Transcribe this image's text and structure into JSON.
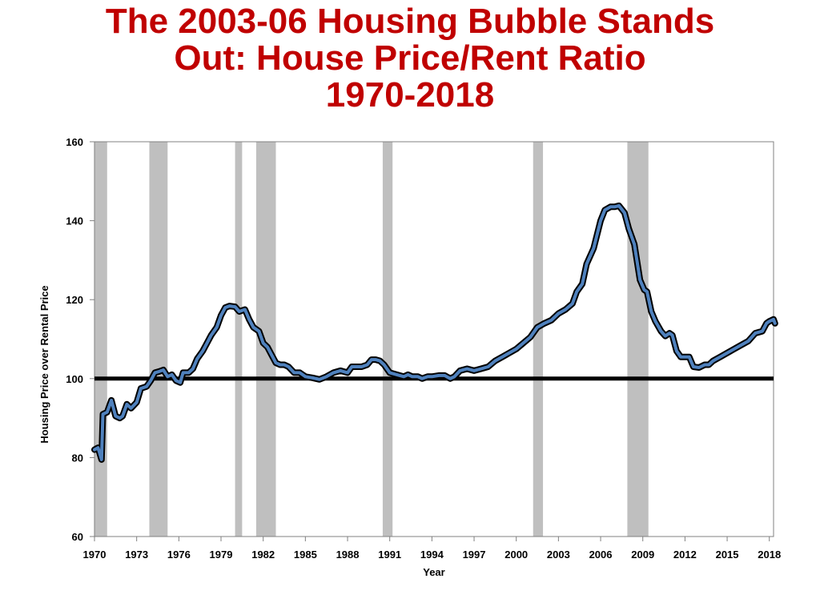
{
  "title_lines": [
    "The 2003-06 Housing Bubble Stands",
    "Out:  House Price/Rent Ratio",
    "1970-2018"
  ],
  "chart_data": {
    "type": "line",
    "title": "The 2003-06 Housing Bubble Stands Out:  House Price/Rent Ratio 1970-2018",
    "xlabel": "Year",
    "ylabel": "Housing Price over Rental Price",
    "xlim": [
      1970,
      2018.3
    ],
    "ylim": [
      60,
      160
    ],
    "xticks": [
      1970,
      1973,
      1976,
      1979,
      1982,
      1985,
      1988,
      1991,
      1994,
      1997,
      2000,
      2003,
      2006,
      2009,
      2012,
      2015,
      2018
    ],
    "yticks": [
      60,
      80,
      100,
      120,
      140,
      160
    ],
    "grid": false,
    "colors": {
      "line": "#4f81bd",
      "outline": "#000000",
      "reference": "#000000",
      "recession": "#bfbfbf",
      "title": "#c00000"
    },
    "reference_line": 100,
    "recessions": [
      [
        1970.0,
        1970.9
      ],
      [
        1973.9,
        1975.2
      ],
      [
        1980.0,
        1980.5
      ],
      [
        1981.5,
        1982.9
      ],
      [
        1990.5,
        1991.2
      ],
      [
        2001.2,
        2001.9
      ],
      [
        2007.9,
        2009.4
      ]
    ],
    "series": [
      {
        "values": [
          [
            1970.0,
            82
          ],
          [
            1970.25,
            82.5
          ],
          [
            1970.5,
            79.5
          ],
          [
            1970.6,
            91
          ],
          [
            1970.9,
            91.5
          ],
          [
            1971.2,
            94.5
          ],
          [
            1971.5,
            90.5
          ],
          [
            1971.8,
            90
          ],
          [
            1972.0,
            90.5
          ],
          [
            1972.3,
            93.5
          ],
          [
            1972.6,
            92.5
          ],
          [
            1973.0,
            94
          ],
          [
            1973.3,
            97.5
          ],
          [
            1973.7,
            98
          ],
          [
            1974.0,
            99.5
          ],
          [
            1974.3,
            101.5
          ],
          [
            1974.6,
            101.8
          ],
          [
            1974.9,
            102.2
          ],
          [
            1975.2,
            100.5
          ],
          [
            1975.5,
            101
          ],
          [
            1975.8,
            99.5
          ],
          [
            1976.1,
            99
          ],
          [
            1976.3,
            101.5
          ],
          [
            1976.7,
            101.5
          ],
          [
            1977.0,
            102.5
          ],
          [
            1977.3,
            105
          ],
          [
            1977.7,
            107
          ],
          [
            1978.0,
            109
          ],
          [
            1978.3,
            111
          ],
          [
            1978.7,
            113
          ],
          [
            1979.0,
            116
          ],
          [
            1979.3,
            118
          ],
          [
            1979.6,
            118.4
          ],
          [
            1980.0,
            118.2
          ],
          [
            1980.3,
            117
          ],
          [
            1980.7,
            117.5
          ],
          [
            1981.0,
            115
          ],
          [
            1981.3,
            113
          ],
          [
            1981.7,
            112
          ],
          [
            1982.0,
            109
          ],
          [
            1982.3,
            108
          ],
          [
            1982.6,
            106
          ],
          [
            1982.9,
            104
          ],
          [
            1983.2,
            103.5
          ],
          [
            1983.5,
            103.5
          ],
          [
            1983.8,
            103
          ],
          [
            1984.2,
            101.5
          ],
          [
            1984.6,
            101.5
          ],
          [
            1985.0,
            100.5
          ],
          [
            1985.5,
            100.2
          ],
          [
            1986.0,
            99.8
          ],
          [
            1986.5,
            100.5
          ],
          [
            1987.0,
            101.5
          ],
          [
            1987.5,
            102
          ],
          [
            1988.0,
            101.5
          ],
          [
            1988.3,
            103
          ],
          [
            1988.7,
            103
          ],
          [
            1989.0,
            103
          ],
          [
            1989.4,
            103.5
          ],
          [
            1989.7,
            104.8
          ],
          [
            1990.0,
            104.8
          ],
          [
            1990.3,
            104.5
          ],
          [
            1990.6,
            103.5
          ],
          [
            1991.0,
            101.5
          ],
          [
            1991.5,
            101
          ],
          [
            1992.0,
            100.5
          ],
          [
            1992.3,
            101
          ],
          [
            1992.6,
            100.5
          ],
          [
            1993.0,
            100.5
          ],
          [
            1993.3,
            100
          ],
          [
            1993.7,
            100.5
          ],
          [
            1994.0,
            100.5
          ],
          [
            1994.5,
            100.8
          ],
          [
            1994.9,
            100.8
          ],
          [
            1995.3,
            100
          ],
          [
            1995.6,
            100.5
          ],
          [
            1996.0,
            102
          ],
          [
            1996.5,
            102.5
          ],
          [
            1997.0,
            102
          ],
          [
            1997.5,
            102.5
          ],
          [
            1998.0,
            103
          ],
          [
            1998.5,
            104.5
          ],
          [
            1999.0,
            105.5
          ],
          [
            1999.5,
            106.5
          ],
          [
            2000.0,
            107.5
          ],
          [
            2000.5,
            109
          ],
          [
            2001.0,
            110.5
          ],
          [
            2001.5,
            113
          ],
          [
            2002.0,
            114
          ],
          [
            2002.5,
            114.8
          ],
          [
            2003.0,
            116.5
          ],
          [
            2003.5,
            117.5
          ],
          [
            2004.0,
            119
          ],
          [
            2004.3,
            122
          ],
          [
            2004.7,
            124
          ],
          [
            2005.0,
            129
          ],
          [
            2005.5,
            133
          ],
          [
            2006.0,
            140
          ],
          [
            2006.3,
            142.7
          ],
          [
            2006.7,
            143.5
          ],
          [
            2007.0,
            143.5
          ],
          [
            2007.3,
            143.8
          ],
          [
            2007.7,
            142
          ],
          [
            2008.0,
            138
          ],
          [
            2008.4,
            134
          ],
          [
            2008.8,
            125
          ],
          [
            2009.1,
            122.5
          ],
          [
            2009.3,
            122
          ],
          [
            2009.6,
            117
          ],
          [
            2009.9,
            114.5
          ],
          [
            2010.3,
            112
          ],
          [
            2010.6,
            110.8
          ],
          [
            2010.9,
            111.5
          ],
          [
            2011.1,
            111
          ],
          [
            2011.4,
            107
          ],
          [
            2011.7,
            105.5
          ],
          [
            2012.0,
            105.5
          ],
          [
            2012.3,
            105.5
          ],
          [
            2012.6,
            103
          ],
          [
            2013.0,
            102.8
          ],
          [
            2013.4,
            103.5
          ],
          [
            2013.7,
            103.5
          ],
          [
            2014.0,
            104.5
          ],
          [
            2014.5,
            105.5
          ],
          [
            2015.0,
            106.5
          ],
          [
            2015.5,
            107.5
          ],
          [
            2016.0,
            108.5
          ],
          [
            2016.5,
            109.5
          ],
          [
            2017.0,
            111.5
          ],
          [
            2017.5,
            112
          ],
          [
            2017.8,
            114
          ],
          [
            2018.0,
            114.5
          ],
          [
            2018.3,
            115
          ],
          [
            2018.4,
            114
          ]
        ]
      }
    ]
  }
}
